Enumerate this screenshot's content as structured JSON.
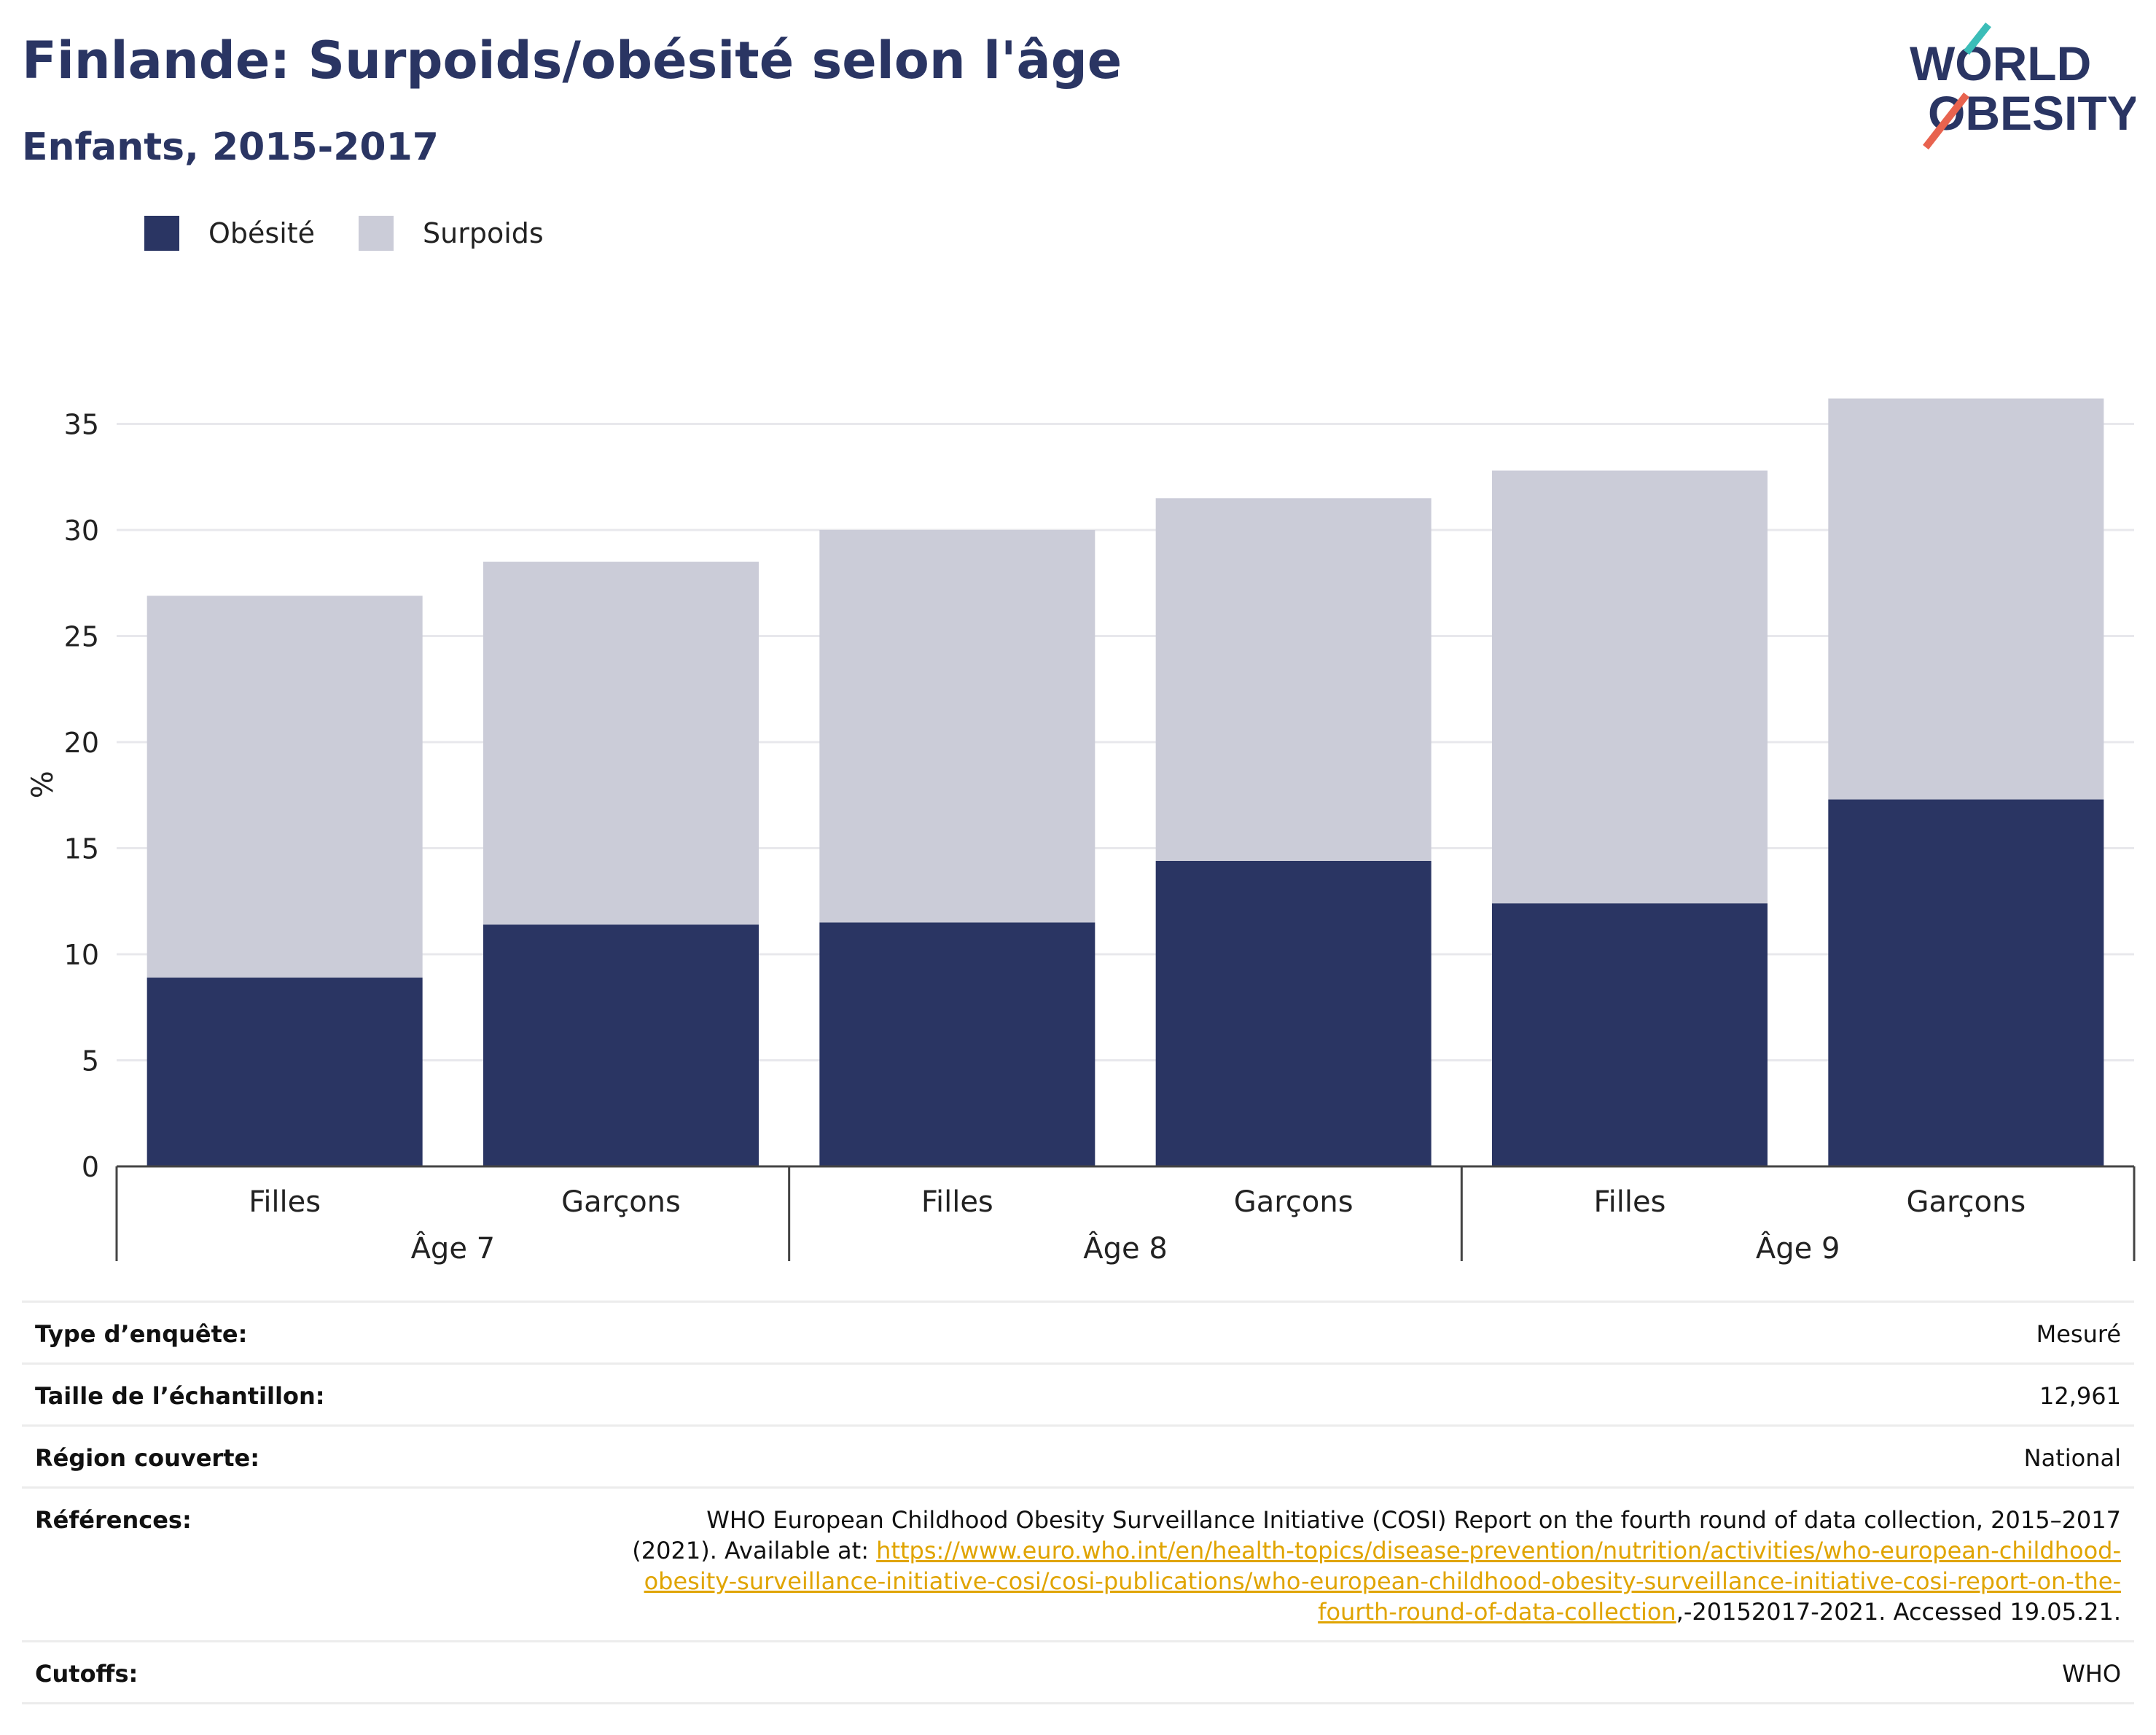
{
  "header": {
    "title": "Finlande: Surpoids/obésité selon l'âge",
    "subtitle": "Enfants, 2015-2017"
  },
  "logo": {
    "line1": "WORLD",
    "line2": "OBESITY"
  },
  "legend": [
    {
      "label": "Obésité",
      "color": "#2a3563"
    },
    {
      "label": "Surpoids",
      "color": "#cbccd8"
    }
  ],
  "chart_data": {
    "type": "bar",
    "stacked": true,
    "ylabel": "%",
    "ylim": [
      0,
      37
    ],
    "yticks": [
      0,
      5,
      10,
      15,
      20,
      25,
      30,
      35
    ],
    "grid": true,
    "legend_position": "top-left",
    "categories": [
      "Filles",
      "Garçons",
      "Filles",
      "Garçons",
      "Filles",
      "Garçons"
    ],
    "groups": [
      {
        "label": "Âge 7",
        "members": [
          0,
          1
        ]
      },
      {
        "label": "Âge 8",
        "members": [
          2,
          3
        ]
      },
      {
        "label": "Âge 9",
        "members": [
          4,
          5
        ]
      }
    ],
    "series": [
      {
        "name": "Obésité",
        "color": "#2a3563",
        "values": [
          8.9,
          11.4,
          11.5,
          14.4,
          12.4,
          17.3
        ]
      },
      {
        "name": "Surpoids",
        "color": "#cbccd8",
        "values": [
          18.0,
          17.1,
          18.5,
          17.1,
          20.4,
          18.9
        ]
      }
    ]
  },
  "meta": {
    "rows": [
      {
        "key": "Type d’enquête:",
        "value": "Mesuré"
      },
      {
        "key": "Taille de l’échantillon:",
        "value": "12,961"
      },
      {
        "key": "Région couverte:",
        "value": "National"
      }
    ],
    "references": {
      "key": "Références:",
      "text": "WHO European Childhood Obesity Surveillance Initiative (COSI) Report on the fourth round of data collection, 2015–2017 (2021).",
      "available": "Available at: ",
      "link": "https://www.euro.who.int/en/health-topics/disease-prevention/nutrition/activities/who-european-childhood-obesity-surveillance-initiative-cosi/cosi-publications/who-european-childhood-obesity-surveillance-initiative-cosi-report-on-the-fourth-round-of-data-collection",
      "suffix": ",-20152017-2021. Accessed 19.05.21."
    },
    "cutoffs": {
      "key": "Cutoffs:",
      "value": "WHO"
    }
  }
}
